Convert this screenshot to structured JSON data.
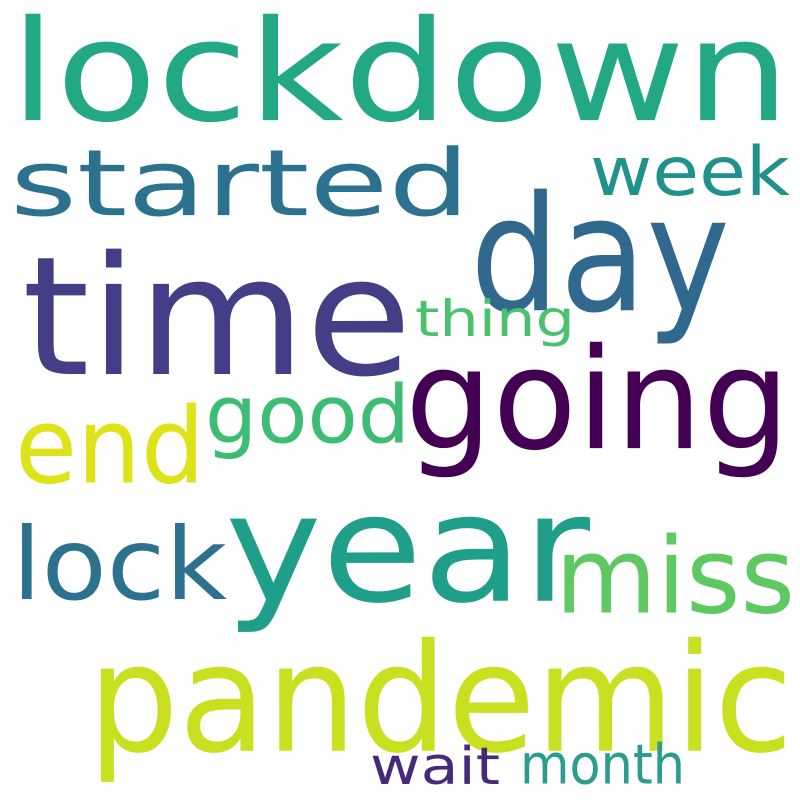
{
  "words": [
    {
      "text": "lockdown",
      "color": "#22a884"
    },
    {
      "text": "started",
      "color": "#2c728e"
    },
    {
      "text": "week",
      "color": "#21918c"
    },
    {
      "text": "day",
      "color": "#31688e"
    },
    {
      "text": "time",
      "color": "#433e85"
    },
    {
      "text": "thing",
      "color": "#4ac16d"
    },
    {
      "text": "going",
      "color": "#440154"
    },
    {
      "text": "good",
      "color": "#3dbc74"
    },
    {
      "text": "end",
      "color": "#dde318"
    },
    {
      "text": "year",
      "color": "#1f9e89"
    },
    {
      "text": "lock",
      "color": "#2c728e"
    },
    {
      "text": "miss",
      "color": "#5ec962"
    },
    {
      "text": "pandemic",
      "color": "#c8e020"
    },
    {
      "text": "wait",
      "color": "#482878"
    },
    {
      "text": "month",
      "color": "#2a9d8f"
    }
  ]
}
